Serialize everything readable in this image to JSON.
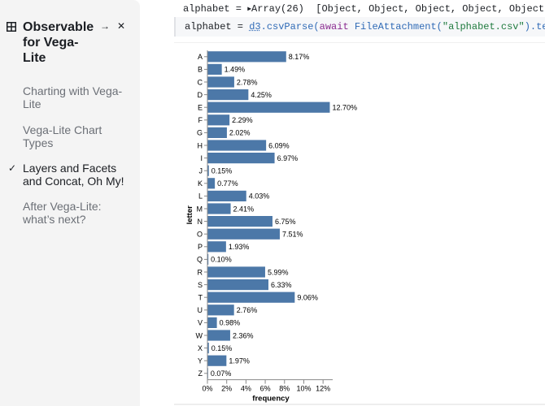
{
  "sidebar": {
    "title": "Observable for Vega-Lite",
    "title_lines": [
      "Observable",
      "for Vega-",
      "Lite"
    ],
    "pin_icon": "→",
    "close_icon": "✕",
    "items": [
      {
        "lines": [
          "Charting with Vega-",
          "Lite"
        ],
        "active": false
      },
      {
        "lines": [
          "Vega-Lite Chart Types"
        ],
        "active": false
      },
      {
        "lines": [
          "Layers and Facets",
          "and Concat, Oh My!"
        ],
        "active": true
      },
      {
        "lines": [
          "After Vega-Lite:",
          "what’s next?"
        ],
        "active": false
      }
    ]
  },
  "cell_output": {
    "name": "alphabet",
    "eq": " = ",
    "caret": "▶",
    "value": "Array(26)",
    "preview": "  [Object, Object, Object, Object, Object, Object"
  },
  "cell_input": {
    "var": "alphabet",
    "eq": " = ",
    "d3": "d3",
    "fn": ".csvParse(",
    "kw": "await",
    "call": " FileAttachment(",
    "str": "\"alphabet.csv\"",
    "tail": ").text())"
  },
  "chart_data": {
    "type": "bar",
    "orientation": "horizontal",
    "title": "",
    "xlabel": "frequency",
    "ylabel": "letter",
    "xlim": [
      0,
      0.13
    ],
    "xticks": [
      0,
      0.02,
      0.04,
      0.06,
      0.08,
      0.1,
      0.12
    ],
    "xtick_labels": [
      "0%",
      "2%",
      "4%",
      "6%",
      "8%",
      "10%",
      "12%"
    ],
    "bar_color": "#4c78a8",
    "grid": false,
    "categories": [
      "A",
      "B",
      "C",
      "D",
      "E",
      "F",
      "G",
      "H",
      "I",
      "J",
      "K",
      "L",
      "M",
      "N",
      "O",
      "P",
      "Q",
      "R",
      "S",
      "T",
      "U",
      "V",
      "W",
      "X",
      "Y",
      "Z"
    ],
    "values": [
      0.0817,
      0.0149,
      0.0278,
      0.0425,
      0.127,
      0.0229,
      0.0202,
      0.0609,
      0.0697,
      0.0015,
      0.0077,
      0.0403,
      0.0241,
      0.0675,
      0.0751,
      0.0193,
      0.001,
      0.0599,
      0.0633,
      0.0906,
      0.0276,
      0.0098,
      0.0236,
      0.0015,
      0.0197,
      0.0007
    ],
    "data_labels": [
      "8.17%",
      "1.49%",
      "2.78%",
      "4.25%",
      "12.70%",
      "2.29%",
      "2.02%",
      "6.09%",
      "6.97%",
      "0.15%",
      "0.77%",
      "4.03%",
      "2.41%",
      "6.75%",
      "7.51%",
      "1.93%",
      "0.10%",
      "5.99%",
      "6.33%",
      "9.06%",
      "2.76%",
      "0.98%",
      "2.36%",
      "0.15%",
      "1.97%",
      "0.07%"
    ]
  }
}
